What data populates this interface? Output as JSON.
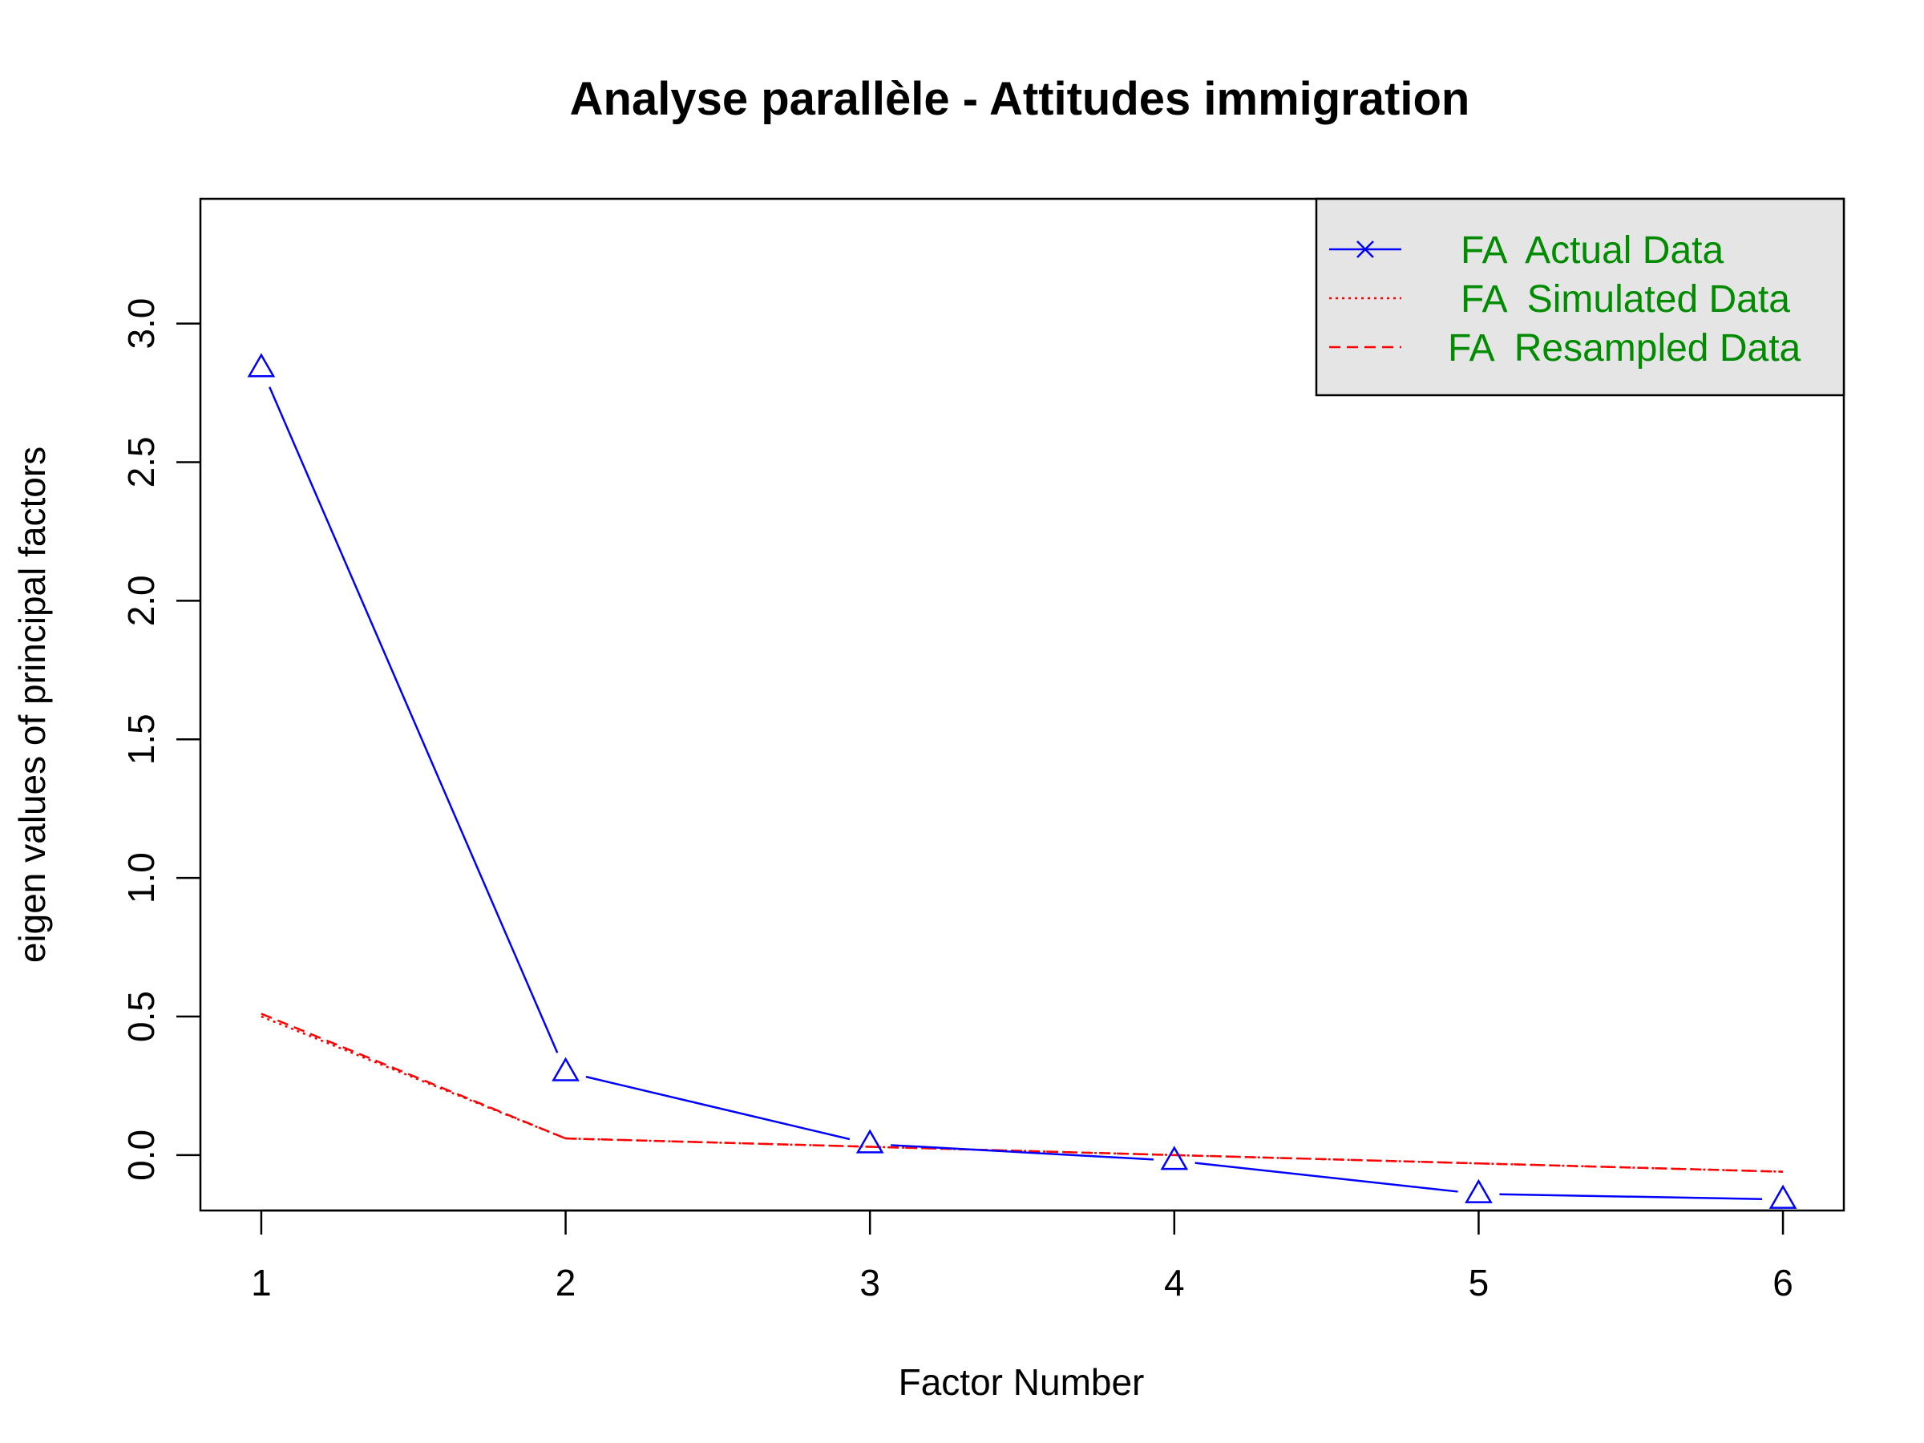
{
  "chart_data": {
    "type": "line",
    "title": "Analyse parallèle - Attitudes immigration",
    "xlabel": "Factor Number",
    "ylabel": "eigen values of principal factors",
    "x": [
      1,
      2,
      3,
      4,
      5,
      6
    ],
    "xlim": [
      0.8,
      6.2
    ],
    "ylim": [
      -0.2,
      3.45
    ],
    "x_ticks": [
      "1",
      "2",
      "3",
      "4",
      "5",
      "6"
    ],
    "y_ticks": [
      "0.0",
      "0.5",
      "1.0",
      "1.5",
      "2.0",
      "2.5",
      "3.0"
    ],
    "y_tick_values": [
      0,
      0.5,
      1,
      1.5,
      2,
      2.5,
      3
    ],
    "grid": false,
    "legend_position": "top-right",
    "legend_background": "#e5e5e5",
    "legend_text_color": "#008b00",
    "series": [
      {
        "name": "FA  Actual Data",
        "values": [
          2.84,
          0.3,
          0.04,
          -0.02,
          -0.14,
          -0.16
        ],
        "color": "#0000ff",
        "style": "solid",
        "marker": "triangle"
      },
      {
        "name": "FA  Simulated Data",
        "values": [
          0.5,
          0.06,
          0.03,
          0.0,
          -0.03,
          -0.06
        ],
        "color": "#ff0000",
        "style": "dotted"
      },
      {
        "name": "FA  Resampled Data",
        "values": [
          0.51,
          0.06,
          0.03,
          0.0,
          -0.03,
          -0.06
        ],
        "color": "#ff0000",
        "style": "dashed"
      }
    ]
  }
}
